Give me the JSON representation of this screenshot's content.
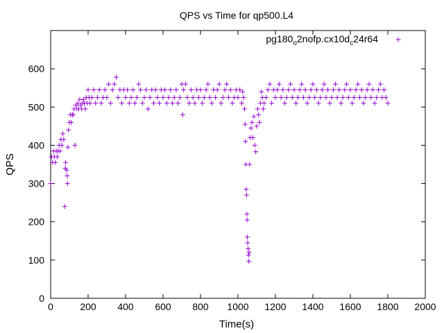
{
  "chart_data": {
    "type": "scatter",
    "title": "QPS vs Time for qp500.L4",
    "xlabel": "Time(s)",
    "ylabel": "QPS",
    "xlim": [
      0,
      2000
    ],
    "ylim": [
      0,
      700
    ],
    "x_ticks": [
      0,
      200,
      400,
      600,
      800,
      1000,
      1200,
      1400,
      1600,
      1800,
      2000
    ],
    "y_ticks": [
      0,
      100,
      200,
      300,
      400,
      500,
      600
    ],
    "grid": false,
    "legend_position": "top-right",
    "marker": "+",
    "series": [
      {
        "name": "pg180_o2nofp.cx10d_c24r64",
        "name_parts": {
          "p1": "pg180",
          "s1": "o",
          "p2": "2nofp.cx10d",
          "s2": "c",
          "p3": "24r64"
        },
        "color": "#9400d3",
        "points": [
          [
            0,
            300
          ],
          [
            5,
            370
          ],
          [
            10,
            355
          ],
          [
            15,
            385
          ],
          [
            20,
            370
          ],
          [
            25,
            355
          ],
          [
            30,
            385
          ],
          [
            35,
            370
          ],
          [
            40,
            385
          ],
          [
            45,
            400
          ],
          [
            50,
            385
          ],
          [
            55,
            415
          ],
          [
            60,
            400
          ],
          [
            65,
            430
          ],
          [
            70,
            415
          ],
          [
            75,
            240
          ],
          [
            78,
            340
          ],
          [
            80,
            355
          ],
          [
            85,
            335
          ],
          [
            88,
            320
          ],
          [
            90,
            300
          ],
          [
            92,
            395
          ],
          [
            95,
            440
          ],
          [
            100,
            460
          ],
          [
            105,
            480
          ],
          [
            110,
            460
          ],
          [
            115,
            480
          ],
          [
            120,
            480
          ],
          [
            125,
            495
          ],
          [
            130,
            400
          ],
          [
            135,
            505
          ],
          [
            140,
            495
          ],
          [
            145,
            510
          ],
          [
            150,
            495
          ],
          [
            155,
            520
          ],
          [
            160,
            505
          ],
          [
            165,
            495
          ],
          [
            170,
            510
          ],
          [
            175,
            520
          ],
          [
            180,
            510
          ],
          [
            185,
            495
          ],
          [
            190,
            525
          ],
          [
            195,
            510
          ],
          [
            200,
            545
          ],
          [
            205,
            525
          ],
          [
            210,
            510
          ],
          [
            220,
            525
          ],
          [
            230,
            545
          ],
          [
            240,
            510
          ],
          [
            250,
            525
          ],
          [
            260,
            545
          ],
          [
            270,
            510
          ],
          [
            280,
            525
          ],
          [
            290,
            545
          ],
          [
            300,
            525
          ],
          [
            310,
            560
          ],
          [
            320,
            510
          ],
          [
            330,
            545
          ],
          [
            340,
            560
          ],
          [
            350,
            578
          ],
          [
            360,
            525
          ],
          [
            370,
            545
          ],
          [
            380,
            510
          ],
          [
            390,
            545
          ],
          [
            400,
            525
          ],
          [
            410,
            545
          ],
          [
            420,
            510
          ],
          [
            430,
            525
          ],
          [
            440,
            545
          ],
          [
            450,
            510
          ],
          [
            460,
            525
          ],
          [
            470,
            560
          ],
          [
            480,
            545
          ],
          [
            490,
            510
          ],
          [
            500,
            525
          ],
          [
            510,
            545
          ],
          [
            520,
            495
          ],
          [
            530,
            525
          ],
          [
            540,
            545
          ],
          [
            550,
            510
          ],
          [
            560,
            545
          ],
          [
            570,
            525
          ],
          [
            580,
            510
          ],
          [
            590,
            545
          ],
          [
            600,
            525
          ],
          [
            610,
            545
          ],
          [
            620,
            510
          ],
          [
            630,
            525
          ],
          [
            640,
            545
          ],
          [
            650,
            510
          ],
          [
            660,
            525
          ],
          [
            670,
            545
          ],
          [
            680,
            510
          ],
          [
            690,
            525
          ],
          [
            700,
            560
          ],
          [
            705,
            480
          ],
          [
            710,
            545
          ],
          [
            720,
            560
          ],
          [
            730,
            525
          ],
          [
            740,
            510
          ],
          [
            750,
            545
          ],
          [
            760,
            525
          ],
          [
            770,
            510
          ],
          [
            780,
            545
          ],
          [
            790,
            525
          ],
          [
            800,
            545
          ],
          [
            810,
            510
          ],
          [
            820,
            525
          ],
          [
            830,
            545
          ],
          [
            840,
            560
          ],
          [
            850,
            525
          ],
          [
            860,
            510
          ],
          [
            870,
            545
          ],
          [
            880,
            525
          ],
          [
            890,
            545
          ],
          [
            900,
            560
          ],
          [
            910,
            510
          ],
          [
            920,
            525
          ],
          [
            930,
            545
          ],
          [
            940,
            560
          ],
          [
            950,
            525
          ],
          [
            960,
            545
          ],
          [
            970,
            510
          ],
          [
            980,
            525
          ],
          [
            990,
            545
          ],
          [
            1000,
            525
          ],
          [
            1010,
            545
          ],
          [
            1020,
            510
          ],
          [
            1025,
            540
          ],
          [
            1030,
            525
          ],
          [
            1035,
            495
          ],
          [
            1038,
            455
          ],
          [
            1040,
            410
          ],
          [
            1042,
            350
          ],
          [
            1044,
            285
          ],
          [
            1046,
            270
          ],
          [
            1048,
            220
          ],
          [
            1049,
            205
          ],
          [
            1050,
            160
          ],
          [
            1052,
            145
          ],
          [
            1054,
            130
          ],
          [
            1056,
            113
          ],
          [
            1058,
            97
          ],
          [
            1060,
            120
          ],
          [
            1062,
            350
          ],
          [
            1065,
            420
          ],
          [
            1070,
            445
          ],
          [
            1075,
            460
          ],
          [
            1080,
            420
          ],
          [
            1085,
            475
          ],
          [
            1090,
            400
          ],
          [
            1095,
            383
          ],
          [
            1100,
            450
          ],
          [
            1105,
            495
          ],
          [
            1110,
            480
          ],
          [
            1115,
            460
          ],
          [
            1120,
            510
          ],
          [
            1125,
            540
          ],
          [
            1130,
            525
          ],
          [
            1135,
            495
          ],
          [
            1140,
            510
          ],
          [
            1150,
            525
          ],
          [
            1160,
            545
          ],
          [
            1170,
            560
          ],
          [
            1180,
            510
          ],
          [
            1190,
            545
          ],
          [
            1200,
            525
          ],
          [
            1210,
            545
          ],
          [
            1220,
            560
          ],
          [
            1230,
            525
          ],
          [
            1240,
            545
          ],
          [
            1250,
            510
          ],
          [
            1260,
            525
          ],
          [
            1270,
            545
          ],
          [
            1280,
            560
          ],
          [
            1290,
            525
          ],
          [
            1300,
            545
          ],
          [
            1310,
            510
          ],
          [
            1320,
            525
          ],
          [
            1330,
            545
          ],
          [
            1340,
            560
          ],
          [
            1350,
            525
          ],
          [
            1360,
            545
          ],
          [
            1370,
            510
          ],
          [
            1380,
            525
          ],
          [
            1390,
            545
          ],
          [
            1400,
            560
          ],
          [
            1410,
            525
          ],
          [
            1420,
            545
          ],
          [
            1430,
            510
          ],
          [
            1440,
            525
          ],
          [
            1450,
            545
          ],
          [
            1460,
            560
          ],
          [
            1470,
            525
          ],
          [
            1480,
            545
          ],
          [
            1490,
            510
          ],
          [
            1500,
            525
          ],
          [
            1510,
            545
          ],
          [
            1520,
            560
          ],
          [
            1530,
            525
          ],
          [
            1540,
            545
          ],
          [
            1550,
            510
          ],
          [
            1560,
            525
          ],
          [
            1570,
            545
          ],
          [
            1580,
            560
          ],
          [
            1590,
            525
          ],
          [
            1600,
            545
          ],
          [
            1610,
            510
          ],
          [
            1620,
            525
          ],
          [
            1630,
            545
          ],
          [
            1640,
            560
          ],
          [
            1650,
            525
          ],
          [
            1660,
            545
          ],
          [
            1670,
            510
          ],
          [
            1680,
            525
          ],
          [
            1690,
            545
          ],
          [
            1700,
            560
          ],
          [
            1710,
            525
          ],
          [
            1720,
            545
          ],
          [
            1730,
            510
          ],
          [
            1740,
            525
          ],
          [
            1750,
            545
          ],
          [
            1760,
            560
          ],
          [
            1770,
            525
          ],
          [
            1780,
            545
          ],
          [
            1790,
            525
          ],
          [
            1800,
            510
          ]
        ]
      }
    ]
  }
}
